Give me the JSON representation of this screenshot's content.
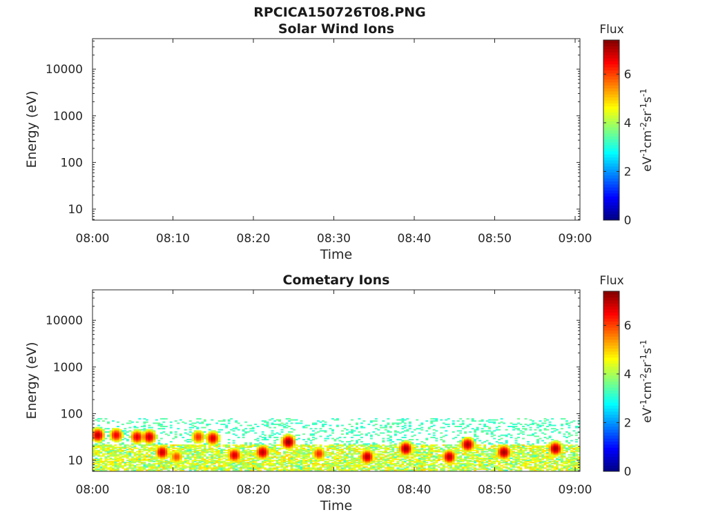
{
  "figure_title": "RPCICA150726T08.PNG",
  "colormap": [
    "#00007f",
    "#0000ff",
    "#007fff",
    "#00ffff",
    "#7fff7f",
    "#ffff00",
    "#ff7f00",
    "#ff0000",
    "#7f0000"
  ],
  "chart_data": [
    {
      "type": "heatmap",
      "title": "Solar Wind Ions",
      "xlabel": "Time",
      "ylabel": "Energy (eV)",
      "x_ticks": [
        "08:00",
        "08:10",
        "08:20",
        "08:30",
        "08:40",
        "08:50",
        "09:00"
      ],
      "y_scale": "log",
      "y_ticks": [
        "10",
        "100",
        "1000",
        "10000"
      ],
      "colorbar": {
        "label": "Flux",
        "units_label": "eV-1cm-2sr-1s-1",
        "ticks": [
          "0",
          "2",
          "4",
          "6"
        ],
        "range": [
          0,
          7.4
        ]
      },
      "data": "empty"
    },
    {
      "type": "heatmap",
      "title": "Cometary Ions",
      "xlabel": "Time",
      "ylabel": "Energy (eV)",
      "x_ticks": [
        "08:00",
        "08:10",
        "08:20",
        "08:30",
        "08:40",
        "08:50",
        "09:00"
      ],
      "y_scale": "log",
      "y_ticks": [
        "10",
        "100",
        "1000",
        "10000"
      ],
      "colorbar": {
        "label": "Flux",
        "units_label": "eV-1cm-2sr-1s-1",
        "ticks": [
          "0",
          "2",
          "4",
          "6"
        ],
        "range": [
          0,
          7.4
        ]
      },
      "background_band": {
        "energy_range_eV": [
          6,
          80
        ],
        "flux": 3
      },
      "low_energy_band": {
        "energy_range_eV": [
          6,
          22
        ],
        "flux": 4.8
      },
      "peaks": [
        {
          "time_min": 0.5,
          "energy_eV": 35,
          "flux": 7.0
        },
        {
          "time_min": 2.8,
          "energy_eV": 35,
          "flux": 6.6
        },
        {
          "time_min": 5.4,
          "energy_eV": 32,
          "flux": 6.7
        },
        {
          "time_min": 6.9,
          "energy_eV": 32,
          "flux": 6.9
        },
        {
          "time_min": 8.5,
          "energy_eV": 15,
          "flux": 6.9
        },
        {
          "time_min": 10.3,
          "energy_eV": 12,
          "flux": 6.0
        },
        {
          "time_min": 13.0,
          "energy_eV": 32,
          "flux": 6.2
        },
        {
          "time_min": 14.8,
          "energy_eV": 30,
          "flux": 6.8
        },
        {
          "time_min": 17.5,
          "energy_eV": 13,
          "flux": 6.8
        },
        {
          "time_min": 21.0,
          "energy_eV": 15,
          "flux": 7.0
        },
        {
          "time_min": 24.2,
          "energy_eV": 25,
          "flux": 7.3
        },
        {
          "time_min": 28.0,
          "energy_eV": 14,
          "flux": 6.2
        },
        {
          "time_min": 34.0,
          "energy_eV": 12,
          "flux": 7.0
        },
        {
          "time_min": 38.8,
          "energy_eV": 18,
          "flux": 7.2
        },
        {
          "time_min": 44.2,
          "energy_eV": 12,
          "flux": 7.0
        },
        {
          "time_min": 46.5,
          "energy_eV": 22,
          "flux": 7.1
        },
        {
          "time_min": 51.0,
          "energy_eV": 15,
          "flux": 7.2
        },
        {
          "time_min": 57.4,
          "energy_eV": 18,
          "flux": 7.2
        }
      ]
    }
  ]
}
